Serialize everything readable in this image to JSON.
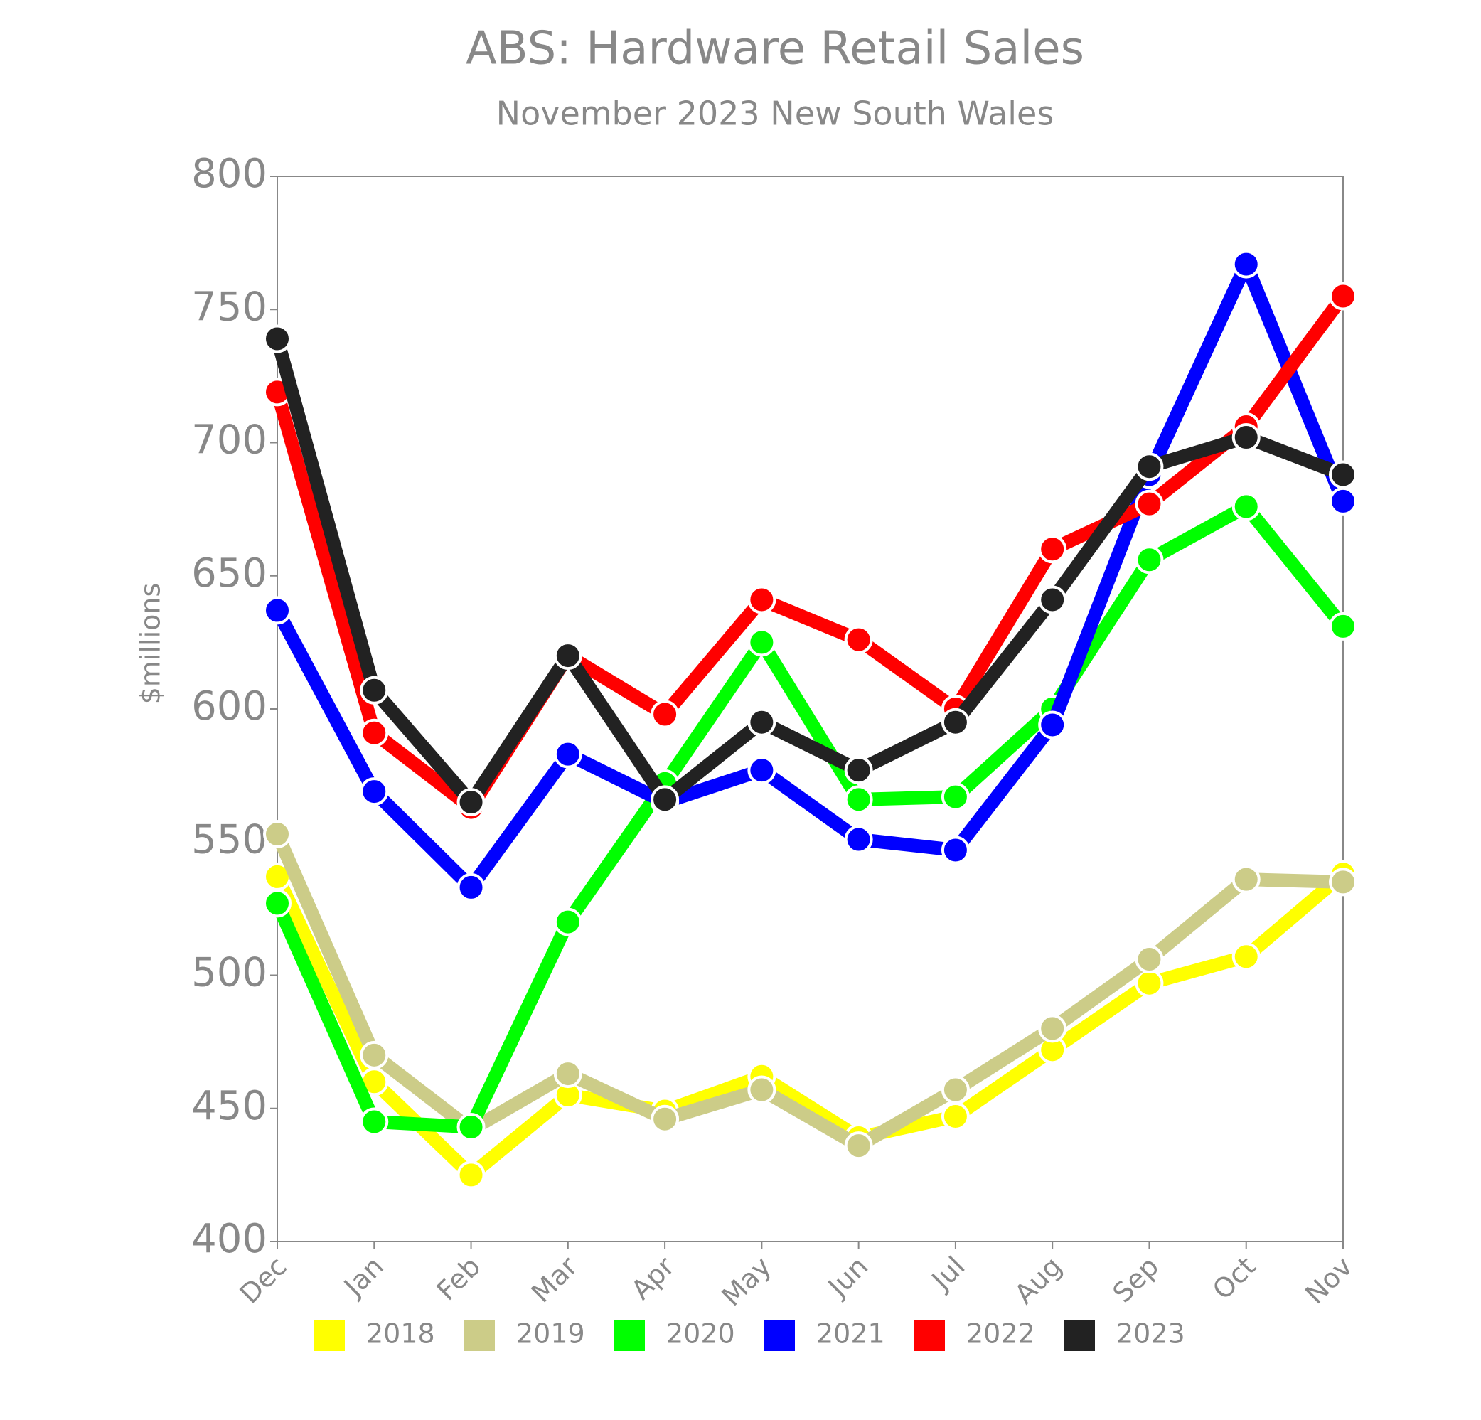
{
  "chart_data": {
    "type": "line",
    "title": "ABS: Hardware Retail Sales",
    "subtitle": "November 2023 New South Wales",
    "y_label": "$millions",
    "categories": [
      "Dec",
      "Jan",
      "Feb",
      "Mar",
      "Apr",
      "May",
      "Jun",
      "Jul",
      "Aug",
      "Sep",
      "Oct",
      "Nov"
    ],
    "series": [
      {
        "name": "2018",
        "color": "#ffff00",
        "values": [
          537,
          460,
          425,
          455,
          449,
          462,
          439,
          447,
          472,
          497,
          507,
          538
        ]
      },
      {
        "name": "2019",
        "color": "#cccc88",
        "values": [
          553,
          470,
          442,
          463,
          446,
          457,
          436,
          457,
          480,
          506,
          536,
          535
        ]
      },
      {
        "name": "2020",
        "color": "#00ff00",
        "values": [
          527,
          445,
          443,
          520,
          572,
          625,
          566,
          567,
          600,
          656,
          676,
          631
        ]
      },
      {
        "name": "2021",
        "color": "#0000ff",
        "values": [
          637,
          569,
          533,
          583,
          565,
          577,
          551,
          547,
          594,
          688,
          767,
          678
        ]
      },
      {
        "name": "2022",
        "color": "#ff0000",
        "values": [
          719,
          591,
          563,
          620,
          598,
          641,
          626,
          600,
          660,
          677,
          706,
          755
        ]
      },
      {
        "name": "2023",
        "color": "#222222",
        "values": [
          739,
          607,
          565,
          620,
          566,
          595,
          577,
          595,
          641,
          691,
          702,
          688
        ]
      }
    ],
    "ylim": [
      400,
      800
    ],
    "yticks": [
      400,
      450,
      500,
      550,
      600,
      650,
      700,
      750,
      800
    ],
    "legend": "bottom",
    "markers": true
  }
}
